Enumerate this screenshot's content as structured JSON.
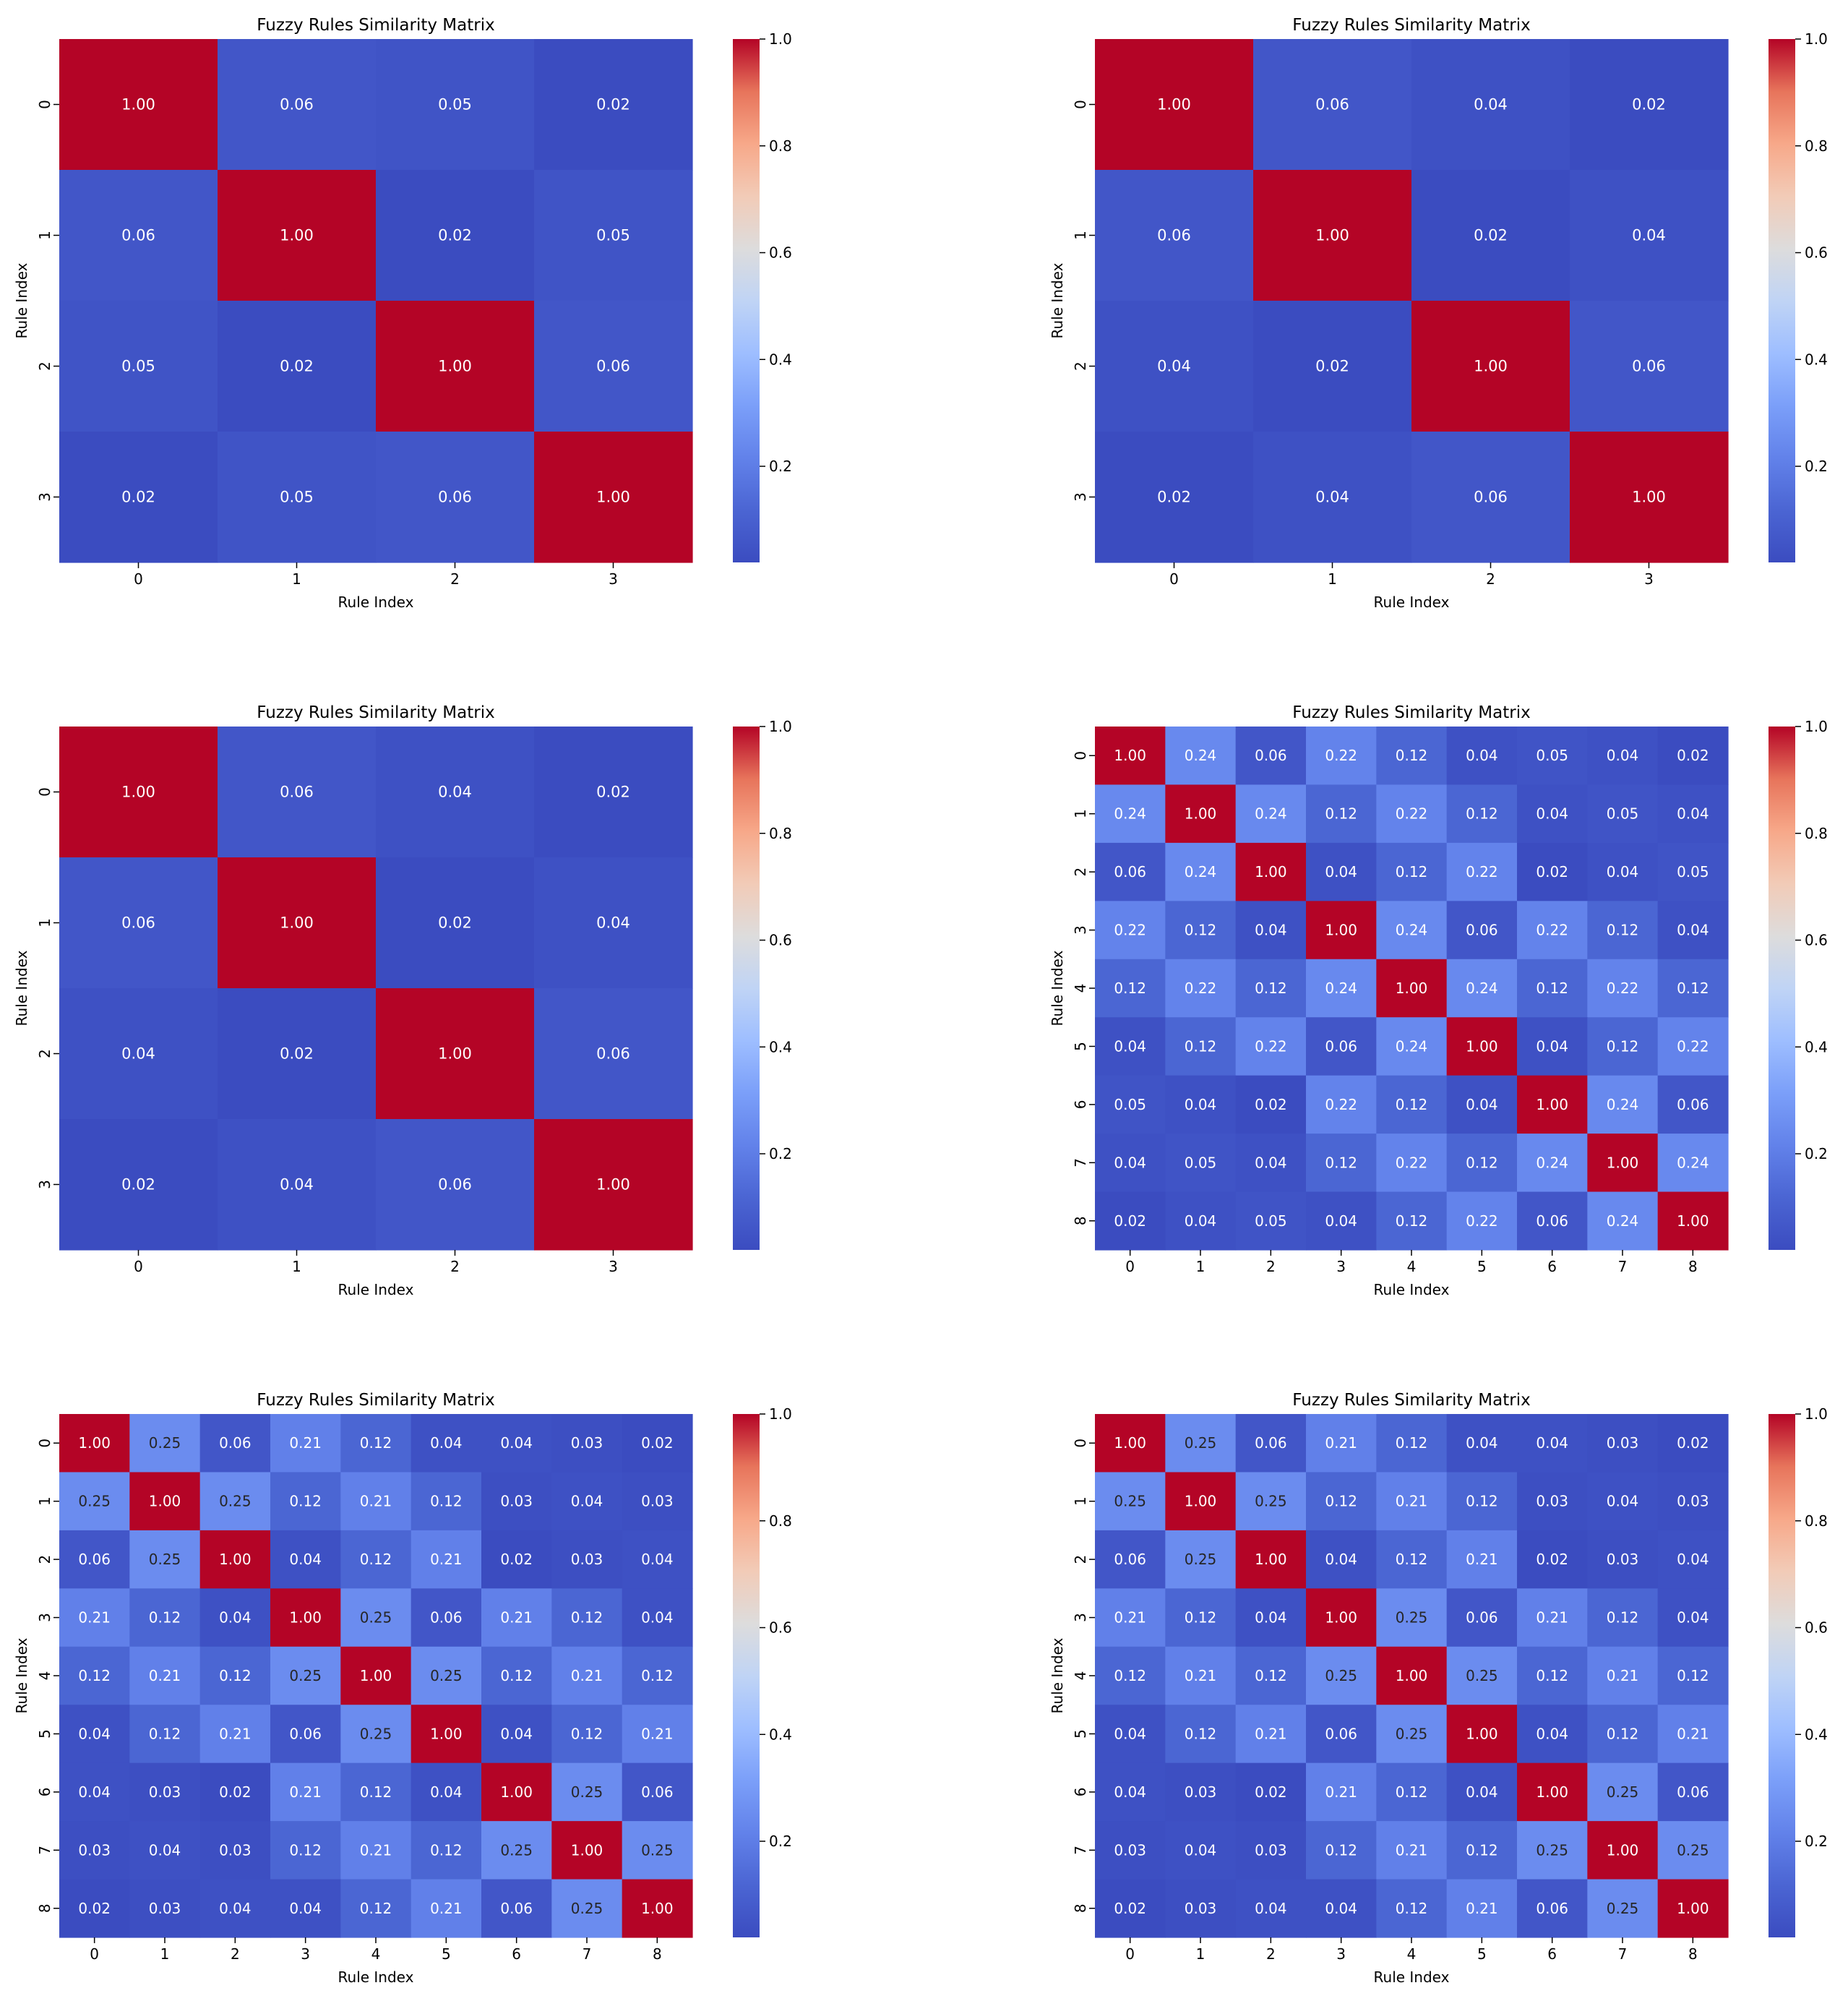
{
  "chart_data": [
    {
      "type": "heatmap",
      "title": "Fuzzy Rules Similarity Matrix",
      "xlabel": "Rule Index",
      "ylabel": "Rule Index",
      "x_ticks": [
        "0",
        "1",
        "2",
        "3"
      ],
      "y_ticks": [
        "0",
        "1",
        "2",
        "3"
      ],
      "colormap": "coolwarm",
      "colorbar": {
        "range": [
          0.02,
          1.0
        ],
        "ticks": [
          "0.2",
          "0.4",
          "0.6",
          "0.8",
          "1.0"
        ]
      },
      "values": [
        [
          1.0,
          0.06,
          0.05,
          0.02
        ],
        [
          0.06,
          1.0,
          0.02,
          0.05
        ],
        [
          0.05,
          0.02,
          1.0,
          0.06
        ],
        [
          0.02,
          0.05,
          0.06,
          1.0
        ]
      ]
    },
    {
      "type": "heatmap",
      "title": "Fuzzy Rules Similarity Matrix",
      "xlabel": "Rule Index",
      "ylabel": "Rule Index",
      "x_ticks": [
        "0",
        "1",
        "2",
        "3"
      ],
      "y_ticks": [
        "0",
        "1",
        "2",
        "3"
      ],
      "colormap": "coolwarm",
      "colorbar": {
        "range": [
          0.02,
          1.0
        ],
        "ticks": [
          "0.2",
          "0.4",
          "0.6",
          "0.8",
          "1.0"
        ]
      },
      "values": [
        [
          1.0,
          0.06,
          0.04,
          0.02
        ],
        [
          0.06,
          1.0,
          0.02,
          0.04
        ],
        [
          0.04,
          0.02,
          1.0,
          0.06
        ],
        [
          0.02,
          0.04,
          0.06,
          1.0
        ]
      ]
    },
    {
      "type": "heatmap",
      "title": "Fuzzy Rules Similarity Matrix",
      "xlabel": "Rule Index",
      "ylabel": "Rule Index",
      "x_ticks": [
        "0",
        "1",
        "2",
        "3"
      ],
      "y_ticks": [
        "0",
        "1",
        "2",
        "3"
      ],
      "colormap": "coolwarm",
      "colorbar": {
        "range": [
          0.02,
          1.0
        ],
        "ticks": [
          "0.2",
          "0.4",
          "0.6",
          "0.8",
          "1.0"
        ]
      },
      "values": [
        [
          1.0,
          0.06,
          0.04,
          0.02
        ],
        [
          0.06,
          1.0,
          0.02,
          0.04
        ],
        [
          0.04,
          0.02,
          1.0,
          0.06
        ],
        [
          0.02,
          0.04,
          0.06,
          1.0
        ]
      ]
    },
    {
      "type": "heatmap",
      "title": "Fuzzy Rules Similarity Matrix",
      "xlabel": "Rule Index",
      "ylabel": "Rule Index",
      "x_ticks": [
        "0",
        "1",
        "2",
        "3",
        "4",
        "5",
        "6",
        "7",
        "8"
      ],
      "y_ticks": [
        "0",
        "1",
        "2",
        "3",
        "4",
        "5",
        "6",
        "7",
        "8"
      ],
      "colormap": "coolwarm",
      "colorbar": {
        "range": [
          0.02,
          1.0
        ],
        "ticks": [
          "0.2",
          "0.4",
          "0.6",
          "0.8",
          "1.0"
        ]
      },
      "values": [
        [
          1.0,
          0.24,
          0.06,
          0.22,
          0.12,
          0.04,
          0.05,
          0.04,
          0.02
        ],
        [
          0.24,
          1.0,
          0.24,
          0.12,
          0.22,
          0.12,
          0.04,
          0.05,
          0.04
        ],
        [
          0.06,
          0.24,
          1.0,
          0.04,
          0.12,
          0.22,
          0.02,
          0.04,
          0.05
        ],
        [
          0.22,
          0.12,
          0.04,
          1.0,
          0.24,
          0.06,
          0.22,
          0.12,
          0.04
        ],
        [
          0.12,
          0.22,
          0.12,
          0.24,
          1.0,
          0.24,
          0.12,
          0.22,
          0.12
        ],
        [
          0.04,
          0.12,
          0.22,
          0.06,
          0.24,
          1.0,
          0.04,
          0.12,
          0.22
        ],
        [
          0.05,
          0.04,
          0.02,
          0.22,
          0.12,
          0.04,
          1.0,
          0.24,
          0.06
        ],
        [
          0.04,
          0.05,
          0.04,
          0.12,
          0.22,
          0.12,
          0.24,
          1.0,
          0.24
        ],
        [
          0.02,
          0.04,
          0.05,
          0.04,
          0.12,
          0.22,
          0.06,
          0.24,
          1.0
        ]
      ]
    },
    {
      "type": "heatmap",
      "title": "Fuzzy Rules Similarity Matrix",
      "xlabel": "Rule Index",
      "ylabel": "Rule Index",
      "x_ticks": [
        "0",
        "1",
        "2",
        "3",
        "4",
        "5",
        "6",
        "7",
        "8"
      ],
      "y_ticks": [
        "0",
        "1",
        "2",
        "3",
        "4",
        "5",
        "6",
        "7",
        "8"
      ],
      "colormap": "coolwarm",
      "colorbar": {
        "range": [
          0.02,
          1.0
        ],
        "ticks": [
          "0.2",
          "0.4",
          "0.6",
          "0.8",
          "1.0"
        ]
      },
      "values": [
        [
          1.0,
          0.25,
          0.06,
          0.21,
          0.12,
          0.04,
          0.04,
          0.03,
          0.02
        ],
        [
          0.25,
          1.0,
          0.25,
          0.12,
          0.21,
          0.12,
          0.03,
          0.04,
          0.03
        ],
        [
          0.06,
          0.25,
          1.0,
          0.04,
          0.12,
          0.21,
          0.02,
          0.03,
          0.04
        ],
        [
          0.21,
          0.12,
          0.04,
          1.0,
          0.25,
          0.06,
          0.21,
          0.12,
          0.04
        ],
        [
          0.12,
          0.21,
          0.12,
          0.25,
          1.0,
          0.25,
          0.12,
          0.21,
          0.12
        ],
        [
          0.04,
          0.12,
          0.21,
          0.06,
          0.25,
          1.0,
          0.04,
          0.12,
          0.21
        ],
        [
          0.04,
          0.03,
          0.02,
          0.21,
          0.12,
          0.04,
          1.0,
          0.25,
          0.06
        ],
        [
          0.03,
          0.04,
          0.03,
          0.12,
          0.21,
          0.12,
          0.25,
          1.0,
          0.25
        ],
        [
          0.02,
          0.03,
          0.04,
          0.04,
          0.12,
          0.21,
          0.06,
          0.25,
          1.0
        ]
      ]
    },
    {
      "type": "heatmap",
      "title": "Fuzzy Rules Similarity Matrix",
      "xlabel": "Rule Index",
      "ylabel": "Rule Index",
      "x_ticks": [
        "0",
        "1",
        "2",
        "3",
        "4",
        "5",
        "6",
        "7",
        "8"
      ],
      "y_ticks": [
        "0",
        "1",
        "2",
        "3",
        "4",
        "5",
        "6",
        "7",
        "8"
      ],
      "colormap": "coolwarm",
      "colorbar": {
        "range": [
          0.02,
          1.0
        ],
        "ticks": [
          "0.2",
          "0.4",
          "0.6",
          "0.8",
          "1.0"
        ]
      },
      "values": [
        [
          1.0,
          0.25,
          0.06,
          0.21,
          0.12,
          0.04,
          0.04,
          0.03,
          0.02
        ],
        [
          0.25,
          1.0,
          0.25,
          0.12,
          0.21,
          0.12,
          0.03,
          0.04,
          0.03
        ],
        [
          0.06,
          0.25,
          1.0,
          0.04,
          0.12,
          0.21,
          0.02,
          0.03,
          0.04
        ],
        [
          0.21,
          0.12,
          0.04,
          1.0,
          0.25,
          0.06,
          0.21,
          0.12,
          0.04
        ],
        [
          0.12,
          0.21,
          0.12,
          0.25,
          1.0,
          0.25,
          0.12,
          0.21,
          0.12
        ],
        [
          0.04,
          0.12,
          0.21,
          0.06,
          0.25,
          1.0,
          0.04,
          0.12,
          0.21
        ],
        [
          0.04,
          0.03,
          0.02,
          0.21,
          0.12,
          0.04,
          1.0,
          0.25,
          0.06
        ],
        [
          0.03,
          0.04,
          0.03,
          0.12,
          0.21,
          0.12,
          0.25,
          1.0,
          0.25
        ],
        [
          0.02,
          0.03,
          0.04,
          0.04,
          0.12,
          0.21,
          0.06,
          0.25,
          1.0
        ]
      ]
    }
  ]
}
